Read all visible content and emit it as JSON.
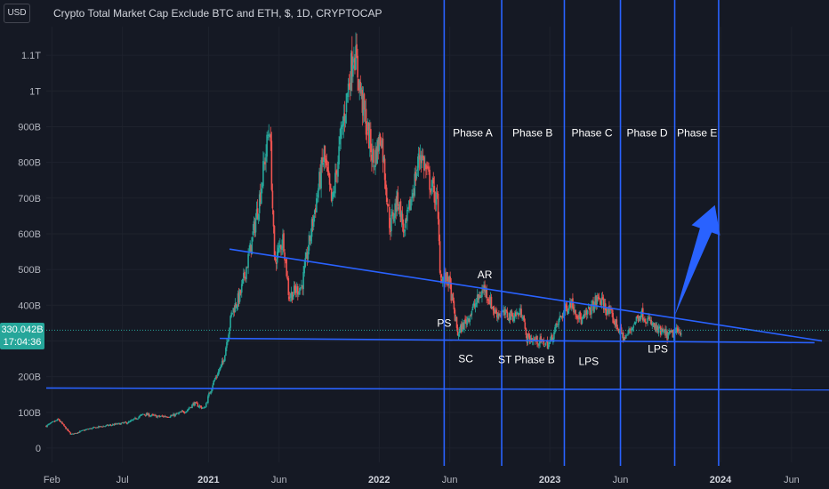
{
  "header": {
    "currency": "USD",
    "title": "Crypto Total Market Cap Exclude BTC and ETH, $, 1D, CRYPTOCAP"
  },
  "price_badge": {
    "price": "330.042B",
    "countdown": "17:04:36"
  },
  "colors": {
    "background": "#151924",
    "up": "#26a69a",
    "down": "#ef5350",
    "annotation_line": "#2962ff",
    "arrow": "#2962ff"
  },
  "chart_data": {
    "type": "candlestick",
    "title": "Crypto Total Market Cap Exclude BTC and ETH, $, 1D, CRYPTOCAP",
    "y_ticks": [
      "0",
      "100B",
      "200B",
      "300B",
      "400B",
      "500B",
      "600B",
      "700B",
      "800B",
      "900B",
      "1T",
      "1.1T"
    ],
    "ylim_billions": [
      -40,
      1180
    ],
    "x_ticks": [
      {
        "label": "Feb",
        "date": "2020-02-01",
        "bold": false
      },
      {
        "label": "Jul",
        "date": "2020-07-01",
        "bold": false
      },
      {
        "label": "2021",
        "date": "2021-01-01",
        "bold": true
      },
      {
        "label": "Jun",
        "date": "2021-06-01",
        "bold": false
      },
      {
        "label": "2022",
        "date": "2022-01-01",
        "bold": true
      },
      {
        "label": "Jun",
        "date": "2022-06-01",
        "bold": false
      },
      {
        "label": "2023",
        "date": "2023-01-01",
        "bold": true
      },
      {
        "label": "Jun",
        "date": "2023-06-01",
        "bold": false
      },
      {
        "label": "2024",
        "date": "2024-01-01",
        "bold": true
      },
      {
        "label": "Jun",
        "date": "2024-06-01",
        "bold": false
      }
    ],
    "xlim": [
      "2020-01-20",
      "2024-08-20"
    ],
    "price_path_billions": [
      [
        "2020-01-20",
        62
      ],
      [
        "2020-02-15",
        80
      ],
      [
        "2020-03-13",
        38
      ],
      [
        "2020-04-15",
        52
      ],
      [
        "2020-05-15",
        60
      ],
      [
        "2020-06-15",
        66
      ],
      [
        "2020-07-15",
        72
      ],
      [
        "2020-08-15",
        95
      ],
      [
        "2020-09-15",
        88
      ],
      [
        "2020-10-15",
        90
      ],
      [
        "2020-11-15",
        105
      ],
      [
        "2020-12-01",
        125
      ],
      [
        "2020-12-23",
        110
      ],
      [
        "2021-01-10",
        180
      ],
      [
        "2021-02-01",
        240
      ],
      [
        "2021-02-20",
        380
      ],
      [
        "2021-03-10",
        430
      ],
      [
        "2021-04-01",
        560
      ],
      [
        "2021-04-20",
        700
      ],
      [
        "2021-05-12",
        905
      ],
      [
        "2021-05-22",
        520
      ],
      [
        "2021-06-10",
        590
      ],
      [
        "2021-06-22",
        425
      ],
      [
        "2021-07-20",
        455
      ],
      [
        "2021-08-10",
        620
      ],
      [
        "2021-09-05",
        820
      ],
      [
        "2021-09-22",
        680
      ],
      [
        "2021-10-10",
        860
      ],
      [
        "2021-11-08",
        1120
      ],
      [
        "2021-11-28",
        950
      ],
      [
        "2021-12-20",
        800
      ],
      [
        "2022-01-05",
        880
      ],
      [
        "2022-01-24",
        620
      ],
      [
        "2022-02-10",
        700
      ],
      [
        "2022-02-24",
        600
      ],
      [
        "2022-03-30",
        830
      ],
      [
        "2022-04-15",
        760
      ],
      [
        "2022-05-05",
        690
      ],
      [
        "2022-05-12",
        480
      ],
      [
        "2022-05-30",
        470
      ],
      [
        "2022-06-18",
        320
      ],
      [
        "2022-07-10",
        365
      ],
      [
        "2022-08-14",
        450
      ],
      [
        "2022-09-05",
        380
      ],
      [
        "2022-10-10",
        370
      ],
      [
        "2022-11-05",
        380
      ],
      [
        "2022-11-10",
        310
      ],
      [
        "2022-12-30",
        290
      ],
      [
        "2023-01-25",
        370
      ],
      [
        "2023-02-15",
        410
      ],
      [
        "2023-03-10",
        355
      ],
      [
        "2023-04-15",
        420
      ],
      [
        "2023-05-10",
        375
      ],
      [
        "2023-06-10",
        305
      ],
      [
        "2023-07-14",
        380
      ],
      [
        "2023-08-18",
        330
      ],
      [
        "2023-09-11",
        315
      ],
      [
        "2023-10-10",
        330
      ]
    ],
    "trendlines": [
      {
        "name": "descending-resistance",
        "points": [
          [
            "2021-02-15",
            557
          ],
          [
            "2024-08-05",
            300
          ]
        ]
      },
      {
        "name": "range-support",
        "points": [
          [
            "2021-01-25",
            307
          ],
          [
            "2024-07-20",
            295
          ]
        ]
      },
      {
        "name": "long-term-support",
        "points": [
          [
            "2020-01-20",
            168
          ],
          [
            "2024-08-20",
            163
          ]
        ]
      }
    ],
    "phase_dividers": [
      "2022-05-20",
      "2022-09-20",
      "2023-02-01",
      "2023-06-01",
      "2023-09-25",
      "2023-12-28"
    ],
    "phases": [
      {
        "label": "Phase A",
        "date": "2022-07-20"
      },
      {
        "label": "Phase B",
        "date": "2022-11-25"
      },
      {
        "label": "Phase C",
        "date": "2023-04-01"
      },
      {
        "label": "Phase D",
        "date": "2023-07-28"
      },
      {
        "label": "Phase E",
        "date": "2023-11-12"
      }
    ],
    "annotations": [
      {
        "label": "PS",
        "date": "2022-05-20",
        "value": 340
      },
      {
        "label": "AR",
        "date": "2022-08-15",
        "value": 475
      },
      {
        "label": "SC",
        "date": "2022-07-05",
        "value": 240
      },
      {
        "label": "ST Phase B",
        "date": "2022-11-12",
        "value": 237
      },
      {
        "label": "LPS",
        "date": "2023-03-25",
        "value": 233
      },
      {
        "label": "LPS",
        "date": "2023-08-20",
        "value": 268
      }
    ],
    "projection_arrow": {
      "from": [
        "2023-09-25",
        370
      ],
      "to": [
        "2023-12-20",
        680
      ]
    },
    "current_price_billions": 330.042
  }
}
